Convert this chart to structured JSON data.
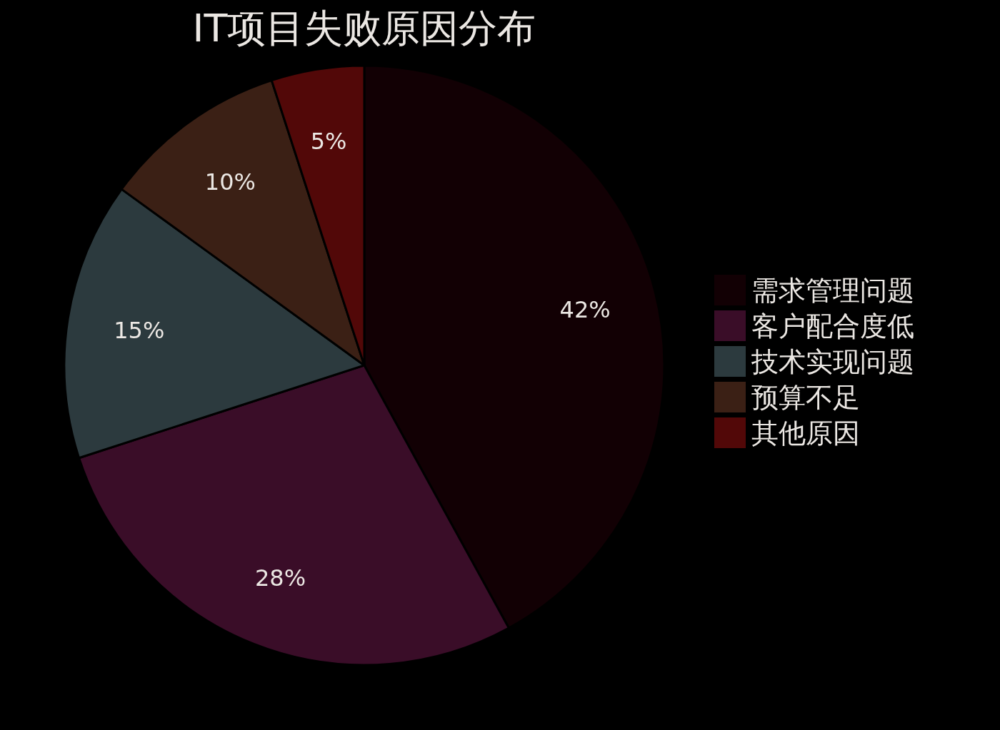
{
  "chart_data": {
    "type": "pie",
    "title": "IT项目失败原因分布",
    "categories": [
      "需求管理问题",
      "客户配合度低",
      "技术实现问题",
      "预算不足",
      "其他原因"
    ],
    "values": [
      42,
      28,
      15,
      10,
      5
    ],
    "value_labels": [
      "42%",
      "28%",
      "15%",
      "10%",
      "5%"
    ],
    "colors": [
      "#120004",
      "#3a0d28",
      "#2c3a3e",
      "#3b2015",
      "#520808"
    ],
    "legend": "right"
  }
}
